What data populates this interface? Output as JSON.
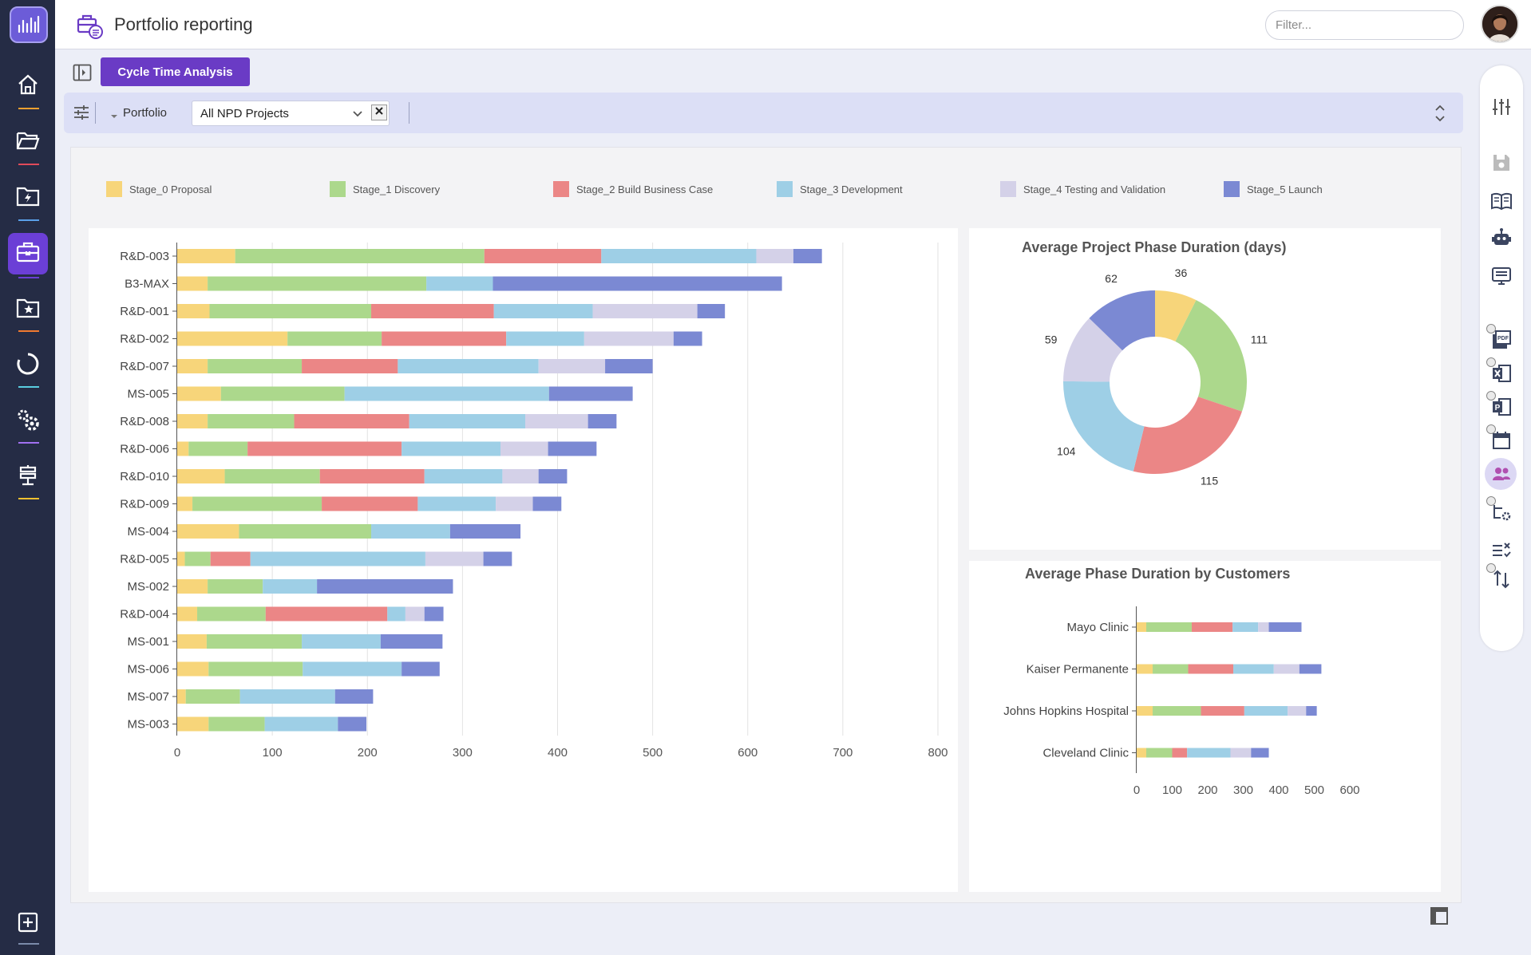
{
  "app": {
    "title": "Portfolio reporting",
    "filter_placeholder": "Filter..."
  },
  "toolbar": {
    "cycle_button_label": "Cycle Time Analysis"
  },
  "filter_bar": {
    "field_label": "Portfolio",
    "selected_value": "All NPD Projects"
  },
  "colors": {
    "accent": "#6a3bc5",
    "nav_bg": "#252c45",
    "stages": [
      "#f7d57a",
      "#acd88c",
      "#eb8686",
      "#9ecfe6",
      "#d4d1e8",
      "#7b89d3"
    ]
  },
  "left_nav": {
    "icons": [
      "home-icon",
      "folder-open-icon",
      "folder-flash-icon",
      "briefcase-icon",
      "folder-star-icon",
      "circle-refresh-icon",
      "gear-icon",
      "signpost-icon"
    ],
    "underline_colors": [
      "#f0a030",
      "#e04a5a",
      "#5aa0e8",
      "#6b3fd6",
      "#f07a30",
      "#5acde0",
      "#a070f0",
      "#f0c030"
    ]
  },
  "right_tools": {
    "icons": [
      "sliders-icon",
      "save-icon",
      "book-icon",
      "robot-icon",
      "monitor-icon",
      "pdf-icon",
      "excel-icon",
      "powerpoint-icon",
      "calendar-icon",
      "users-icon",
      "flow-settings-icon",
      "list-check-icon",
      "sort-icon"
    ]
  },
  "chart_data": [
    {
      "type": "bar",
      "orientation": "horizontal",
      "stacked": true,
      "title": "",
      "legend": [
        "Stage_0 Proposal",
        "Stage_1 Discovery",
        "Stage_2 Build Business Case",
        "Stage_3 Development",
        "Stage_4 Testing and Validation",
        "Stage_5 Launch"
      ],
      "categories": [
        "R&D-003",
        "B3-MAX",
        "R&D-001",
        "R&D-002",
        "R&D-007",
        "MS-005",
        "R&D-008",
        "R&D-006",
        "R&D-010",
        "R&D-009",
        "MS-004",
        "R&D-005",
        "MS-002",
        "R&D-004",
        "MS-001",
        "MS-006",
        "MS-007",
        "MS-003"
      ],
      "series": [
        {
          "name": "Stage_0 Proposal",
          "values": [
            61,
            32,
            34,
            116,
            32,
            46,
            32,
            12,
            50,
            16,
            65,
            8,
            32,
            21,
            31,
            33,
            9,
            33
          ]
        },
        {
          "name": "Stage_1 Discovery",
          "values": [
            262,
            230,
            170,
            99,
            99,
            130,
            91,
            62,
            100,
            136,
            139,
            27,
            58,
            72,
            100,
            99,
            57,
            59
          ]
        },
        {
          "name": "Stage_2 Build Business Case",
          "values": [
            123,
            0,
            129,
            131,
            101,
            0,
            121,
            162,
            110,
            101,
            0,
            42,
            0,
            128,
            0,
            0,
            0,
            0
          ]
        },
        {
          "name": "Stage_3 Development",
          "values": [
            163,
            70,
            104,
            82,
            148,
            215,
            122,
            104,
            82,
            82,
            83,
            184,
            57,
            19,
            83,
            104,
            100,
            77
          ]
        },
        {
          "name": "Stage_4 Testing and Validation",
          "values": [
            39,
            0,
            110,
            94,
            70,
            0,
            66,
            50,
            38,
            39,
            0,
            61,
            0,
            20,
            0,
            0,
            0,
            0
          ]
        },
        {
          "name": "Stage_5 Launch",
          "values": [
            30,
            304,
            29,
            30,
            50,
            88,
            30,
            51,
            30,
            30,
            74,
            30,
            143,
            20,
            65,
            40,
            40,
            30
          ]
        }
      ],
      "xlim": [
        0,
        800
      ],
      "xticks": [
        0,
        100,
        200,
        300,
        400,
        500,
        600,
        700,
        800
      ]
    },
    {
      "type": "pie",
      "donut": true,
      "title": "Average Project Phase Duration (days)",
      "labels": [
        "Stage_0 Proposal",
        "Stage_1 Discovery",
        "Stage_2 Build Business Case",
        "Stage_3 Development",
        "Stage_4 Testing and Validation",
        "Stage_5 Launch"
      ],
      "values": [
        36,
        111,
        115,
        104,
        59,
        62
      ]
    },
    {
      "type": "bar",
      "orientation": "horizontal",
      "stacked": true,
      "title": "Average Phase Duration by Customers",
      "categories": [
        "Mayo Clinic",
        "Kaiser Permanente",
        "Johns Hopkins Hospital",
        "Cleveland Clinic"
      ],
      "series": [
        {
          "name": "Stage_0 Proposal",
          "values": [
            27,
            45,
            45,
            27
          ]
        },
        {
          "name": "Stage_1 Discovery",
          "values": [
            128,
            100,
            136,
            73
          ]
        },
        {
          "name": "Stage_2 Build Business Case",
          "values": [
            115,
            127,
            122,
            42
          ]
        },
        {
          "name": "Stage_3 Development",
          "values": [
            72,
            114,
            122,
            122
          ]
        },
        {
          "name": "Stage_4 Testing and Validation",
          "values": [
            30,
            72,
            52,
            58
          ]
        },
        {
          "name": "Stage_5 Launch",
          "values": [
            92,
            62,
            30,
            50
          ]
        }
      ],
      "xlim": [
        0,
        600
      ],
      "xticks": [
        0,
        100,
        200,
        300,
        400,
        500,
        600
      ]
    }
  ]
}
